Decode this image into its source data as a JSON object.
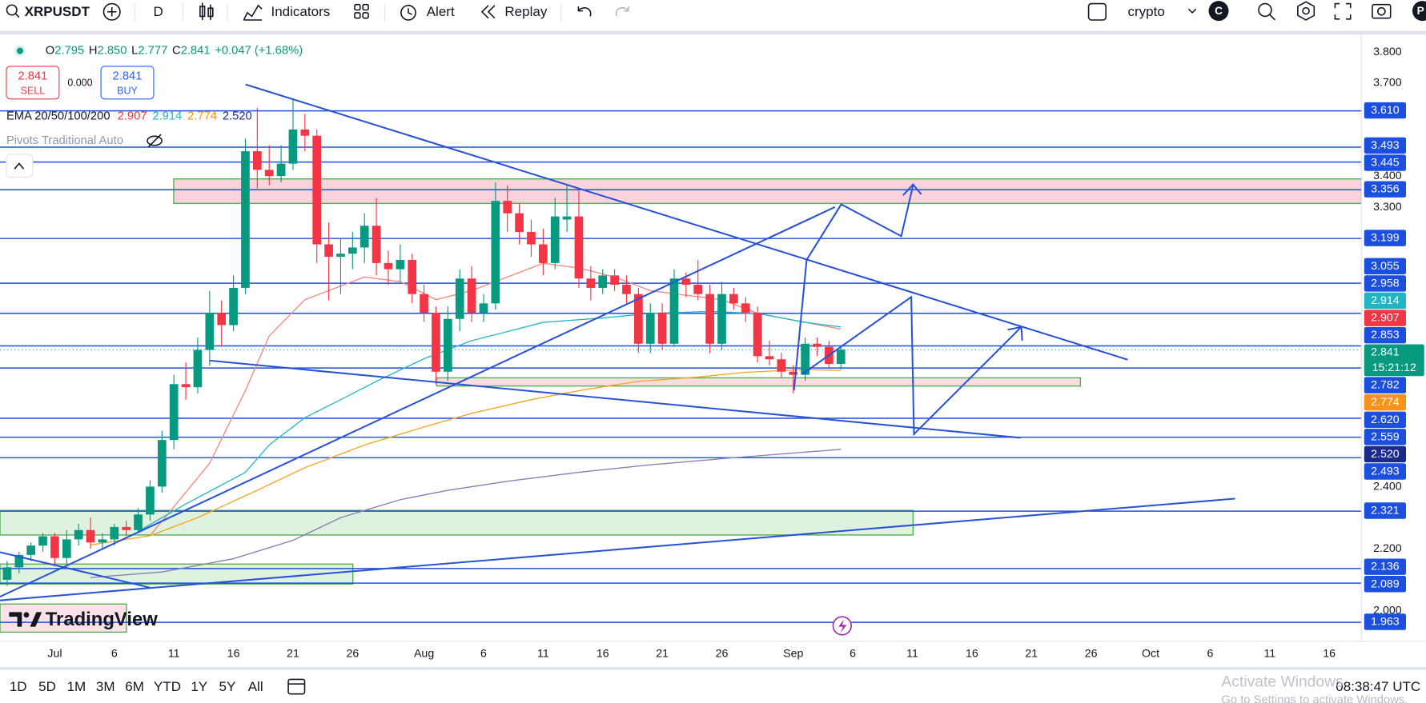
{
  "toolbar": {
    "symbol": "XRPUSDT",
    "interval": "D",
    "indicators": "Indicators",
    "alert": "Alert",
    "replay": "Replay",
    "layout": "crypto",
    "account": "C",
    "profile": "P"
  },
  "legend": {
    "o_label": "O",
    "open": "2.795",
    "h_label": "H",
    "high": "2.850",
    "l_label": "L",
    "low": "2.777",
    "c_label": "C",
    "close": "2.841",
    "change": "+0.047 (+1.68%)",
    "sell_price": "2.841",
    "sell": "SELL",
    "spread": "0.000",
    "buy_price": "2.841",
    "buy": "BUY",
    "ema_title": "EMA 20/50/100/200",
    "ema_values": [
      "2.907",
      "2.914",
      "2.774",
      "2.520"
    ],
    "pivots": "Pivots Traditional Auto"
  },
  "chart_data": {
    "type": "candlestick",
    "up_color": "#089981",
    "down_color": "#f23645",
    "candles": [
      [
        2.1,
        2.16,
        2.08,
        2.14
      ],
      [
        2.14,
        2.19,
        2.12,
        2.18
      ],
      [
        2.18,
        2.22,
        2.16,
        2.21
      ],
      [
        2.21,
        2.25,
        2.19,
        2.24
      ],
      [
        2.24,
        2.25,
        2.15,
        2.17
      ],
      [
        2.17,
        2.26,
        2.15,
        2.23
      ],
      [
        2.23,
        2.28,
        2.21,
        2.26
      ],
      [
        2.26,
        2.3,
        2.2,
        2.22
      ],
      [
        2.22,
        2.25,
        2.2,
        2.23
      ],
      [
        2.23,
        2.28,
        2.21,
        2.27
      ],
      [
        2.27,
        2.29,
        2.24,
        2.26
      ],
      [
        2.26,
        2.33,
        2.25,
        2.31
      ],
      [
        2.31,
        2.42,
        2.29,
        2.4
      ],
      [
        2.4,
        2.58,
        2.38,
        2.55
      ],
      [
        2.55,
        2.76,
        2.52,
        2.73
      ],
      [
        2.73,
        2.8,
        2.68,
        2.72
      ],
      [
        2.72,
        2.88,
        2.7,
        2.84
      ],
      [
        2.84,
        3.03,
        2.79,
        2.96
      ],
      [
        2.96,
        3.0,
        2.85,
        2.92
      ],
      [
        2.92,
        3.08,
        2.9,
        3.04
      ],
      [
        3.04,
        3.52,
        3.02,
        3.48
      ],
      [
        3.48,
        3.62,
        3.36,
        3.42
      ],
      [
        3.42,
        3.5,
        3.37,
        3.4
      ],
      [
        3.4,
        3.5,
        3.38,
        3.44
      ],
      [
        3.44,
        3.65,
        3.42,
        3.55
      ],
      [
        3.55,
        3.6,
        3.48,
        3.53
      ],
      [
        3.53,
        3.55,
        3.12,
        3.18
      ],
      [
        3.18,
        3.25,
        3.0,
        3.14
      ],
      [
        3.14,
        3.2,
        3.02,
        3.15
      ],
      [
        3.15,
        3.22,
        3.1,
        3.17
      ],
      [
        3.17,
        3.28,
        3.12,
        3.24
      ],
      [
        3.24,
        3.33,
        3.08,
        3.12
      ],
      [
        3.12,
        3.16,
        3.05,
        3.1
      ],
      [
        3.1,
        3.18,
        3.06,
        3.13
      ],
      [
        3.13,
        3.15,
        2.99,
        3.02
      ],
      [
        3.02,
        3.05,
        2.93,
        2.96
      ],
      [
        2.96,
        2.98,
        2.73,
        2.77
      ],
      [
        2.77,
        2.98,
        2.74,
        2.94
      ],
      [
        2.94,
        3.1,
        2.9,
        3.07
      ],
      [
        3.07,
        3.11,
        2.93,
        2.96
      ],
      [
        2.96,
        3.02,
        2.93,
        2.99
      ],
      [
        2.99,
        3.38,
        2.97,
        3.32
      ],
      [
        3.32,
        3.37,
        3.22,
        3.28
      ],
      [
        3.28,
        3.31,
        3.18,
        3.22
      ],
      [
        3.22,
        3.26,
        3.14,
        3.18
      ],
      [
        3.18,
        3.23,
        3.08,
        3.12
      ],
      [
        3.12,
        3.33,
        3.1,
        3.27
      ],
      [
        3.26,
        3.37,
        3.22,
        3.27
      ],
      [
        3.27,
        3.36,
        3.04,
        3.07
      ],
      [
        3.07,
        3.11,
        3.0,
        3.04
      ],
      [
        3.04,
        3.1,
        3.02,
        3.08
      ],
      [
        3.08,
        3.1,
        3.03,
        3.05
      ],
      [
        3.05,
        3.08,
        2.99,
        3.02
      ],
      [
        3.02,
        3.04,
        2.83,
        2.86
      ],
      [
        2.86,
        2.99,
        2.83,
        2.96
      ],
      [
        2.96,
        2.99,
        2.84,
        2.86
      ],
      [
        2.86,
        3.1,
        2.85,
        3.07
      ],
      [
        3.07,
        3.09,
        3.01,
        3.05
      ],
      [
        3.05,
        3.13,
        3.0,
        3.02
      ],
      [
        3.02,
        3.05,
        2.83,
        2.86
      ],
      [
        2.86,
        3.06,
        2.84,
        3.02
      ],
      [
        3.02,
        3.04,
        2.97,
        2.99
      ],
      [
        2.99,
        3.01,
        2.93,
        2.96
      ],
      [
        2.96,
        2.98,
        2.8,
        2.82
      ],
      [
        2.82,
        2.87,
        2.79,
        2.81
      ],
      [
        2.81,
        2.83,
        2.75,
        2.77
      ],
      [
        2.77,
        2.79,
        2.7,
        2.76
      ],
      [
        2.76,
        2.88,
        2.74,
        2.86
      ],
      [
        2.86,
        2.88,
        2.82,
        2.85
      ],
      [
        2.85,
        2.87,
        2.78,
        2.795
      ],
      [
        2.795,
        2.85,
        2.777,
        2.841
      ]
    ],
    "ema_series": [
      {
        "color": "#f28b82",
        "x": [
          12,
          17,
          20,
          22,
          25,
          27,
          30,
          33,
          36,
          39,
          42,
          45,
          48,
          51,
          54,
          57,
          60,
          63,
          67,
          70
        ],
        "values": [
          2.242,
          2.475,
          2.709,
          2.885,
          3.002,
          3.031,
          3.075,
          3.06,
          3.002,
          3.031,
          3.075,
          3.119,
          3.104,
          3.075,
          3.031,
          3.016,
          3.002,
          2.958,
          2.929,
          2.907
        ]
      },
      {
        "color": "#26b8c8",
        "x": [
          11,
          15,
          20,
          22,
          25,
          28,
          31,
          35,
          39,
          42,
          45,
          50,
          54,
          59,
          63,
          67,
          70
        ],
        "values": [
          2.256,
          2.344,
          2.446,
          2.534,
          2.622,
          2.68,
          2.739,
          2.812,
          2.87,
          2.899,
          2.929,
          2.943,
          2.958,
          2.964,
          2.958,
          2.929,
          2.914
        ]
      },
      {
        "color": "#f5a623",
        "x": [
          7,
          12,
          16,
          21,
          25,
          30,
          35,
          39,
          44,
          48,
          53,
          58,
          62,
          67,
          70
        ],
        "values": [
          2.212,
          2.242,
          2.3,
          2.388,
          2.461,
          2.534,
          2.592,
          2.636,
          2.68,
          2.709,
          2.739,
          2.753,
          2.768,
          2.777,
          2.774
        ]
      },
      {
        "color": "#8a7fb5",
        "x": [
          7,
          13,
          19,
          24,
          28,
          33,
          37,
          42,
          48,
          54,
          60,
          67,
          70
        ],
        "values": [
          2.107,
          2.125,
          2.168,
          2.227,
          2.3,
          2.358,
          2.388,
          2.417,
          2.446,
          2.47,
          2.49,
          2.511,
          2.52
        ]
      }
    ],
    "xlim": [
      -0.6,
      113.7
    ],
    "xticks": [
      {
        "value": 4,
        "label": "Jul"
      },
      {
        "value": 9,
        "label": "6"
      },
      {
        "value": 14,
        "label": "11"
      },
      {
        "value": 19,
        "label": "16"
      },
      {
        "value": 24,
        "label": "21"
      },
      {
        "value": 29,
        "label": "26"
      },
      {
        "value": 35,
        "label": "Aug"
      },
      {
        "value": 40,
        "label": "6"
      },
      {
        "value": 45,
        "label": "11"
      },
      {
        "value": 50,
        "label": "16"
      },
      {
        "value": 55,
        "label": "21"
      },
      {
        "value": 60,
        "label": "26"
      },
      {
        "value": 66,
        "label": "Sep"
      },
      {
        "value": 71,
        "label": "6"
      },
      {
        "value": 76,
        "label": "11"
      },
      {
        "value": 81,
        "label": "16"
      },
      {
        "value": 86,
        "label": "21"
      },
      {
        "value": 91,
        "label": "26"
      },
      {
        "value": 96,
        "label": "Oct"
      },
      {
        "value": 101,
        "label": "6"
      },
      {
        "value": 106,
        "label": "11"
      },
      {
        "value": 111,
        "label": "16"
      }
    ],
    "ylim": [
      1.902,
      3.85
    ],
    "yticks": [
      {
        "value": 3.8,
        "label": "3.800"
      },
      {
        "value": 3.7,
        "label": "3.700"
      },
      {
        "value": 3.4,
        "label": "3.400"
      },
      {
        "value": 3.3,
        "label": "3.300"
      },
      {
        "value": 2.4,
        "label": "2.400"
      },
      {
        "value": 2.2,
        "label": "2.200"
      },
      {
        "value": 2.0,
        "label": "2.000"
      }
    ],
    "levels": [
      {
        "kind": "level",
        "value": 3.61,
        "label": "3.610",
        "color": "#1c4fe0"
      },
      {
        "kind": "level",
        "value": 3.493,
        "label": "3.493",
        "color": "#1c4fe0"
      },
      {
        "kind": "level",
        "value": 3.445,
        "label": "3.445",
        "color": "#1c4fe0"
      },
      {
        "kind": "level",
        "value": 3.356,
        "label": "3.356",
        "color": "#1c4fe0"
      },
      {
        "kind": "level",
        "value": 3.199,
        "label": "3.199",
        "color": "#1c4fe0"
      },
      {
        "kind": "level",
        "value": 3.055,
        "label": "3.055",
        "color": "#1c4fe0"
      },
      {
        "kind": "level",
        "value": 2.958,
        "label": "2.958",
        "color": "#1c4fe0"
      },
      {
        "kind": "ema",
        "value": 2.914,
        "label": "2.914",
        "color": "#1fb5c4"
      },
      {
        "kind": "ema",
        "value": 2.907,
        "label": "2.907",
        "color": "#f23645"
      },
      {
        "kind": "level",
        "value": 2.853,
        "label": "2.853",
        "color": "#1c4fe0"
      },
      {
        "kind": "last",
        "value": 2.841,
        "label": "2.841",
        "countdown": "15:21:12",
        "color": "#089981"
      },
      {
        "kind": "level",
        "value": 2.782,
        "label": "2.782",
        "color": "#1c4fe0"
      },
      {
        "kind": "ema",
        "value": 2.774,
        "label": "2.774",
        "color": "#f7931a"
      },
      {
        "kind": "level",
        "value": 2.62,
        "label": "2.620",
        "color": "#1c4fe0"
      },
      {
        "kind": "level",
        "value": 2.559,
        "label": "2.559",
        "color": "#1c4fe0"
      },
      {
        "kind": "ema",
        "value": 2.52,
        "label": "2.520",
        "color": "#1a2a8c"
      },
      {
        "kind": "level",
        "value": 2.493,
        "label": "2.493",
        "color": "#1c4fe0"
      },
      {
        "kind": "level",
        "value": 2.321,
        "label": "2.321",
        "color": "#1c4fe0"
      },
      {
        "kind": "level",
        "value": 2.136,
        "label": "2.136",
        "color": "#1c4fe0"
      },
      {
        "kind": "level",
        "value": 2.089,
        "label": "2.089",
        "color": "#1c4fe0"
      },
      {
        "kind": "level",
        "value": 1.963,
        "label": "1.963",
        "color": "#1c4fe0"
      }
    ]
  },
  "bottom_bar": {
    "ranges": [
      "1D",
      "5D",
      "1M",
      "3M",
      "6M",
      "YTD",
      "1Y",
      "5Y",
      "All"
    ],
    "clock": "08:38:47 UTC",
    "watermark": "Activate Windows",
    "watermark_sub": "Go to Settings to activate Windows.",
    "logo": "TradingView"
  }
}
